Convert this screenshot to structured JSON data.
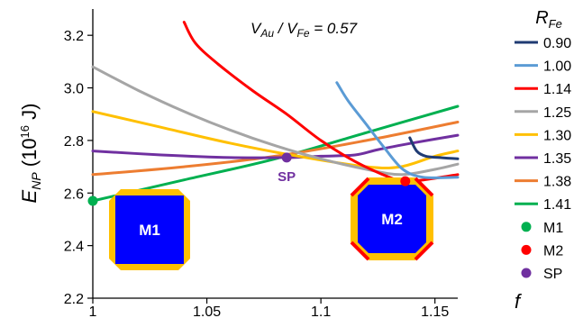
{
  "chart_data": {
    "type": "line",
    "annotation": {
      "main": "V",
      "sub1": "Au",
      "sep": " / V",
      "sub2": "Fe",
      "rest": " = 0.57"
    },
    "xlabel": "f",
    "ylabel": {
      "main": "E",
      "sub": "NP",
      "unit_open": " (10",
      "sup": "16",
      "unit_close": " J)"
    },
    "xlim": [
      1.0,
      1.16
    ],
    "ylim": [
      2.2,
      3.3
    ],
    "xticks": [
      1,
      1.05,
      1.1,
      1.15
    ],
    "xtick_labels": [
      "1",
      "1.05",
      "1.1",
      "1.15"
    ],
    "yticks": [
      2.2,
      2.4,
      2.6,
      2.8,
      3.0,
      3.2
    ],
    "ytick_labels": [
      "2.2",
      "2.4",
      "2.6",
      "2.8",
      "3.0",
      "3.2"
    ],
    "grid": false,
    "legend": {
      "title_main": "R",
      "title_sub": "Fe",
      "placement": "right"
    },
    "series": [
      {
        "name": "0.90",
        "color": "#1f3b73",
        "x": [
          1.139,
          1.142,
          1.146,
          1.152,
          1.16
        ],
        "y": [
          2.81,
          2.76,
          2.74,
          2.735,
          2.73
        ]
      },
      {
        "name": "1.00",
        "color": "#5b9bd5",
        "x": [
          1.107,
          1.112,
          1.12,
          1.128,
          1.136,
          1.145,
          1.16
        ],
        "y": [
          3.02,
          2.95,
          2.86,
          2.77,
          2.69,
          2.66,
          2.66
        ]
      },
      {
        "name": "1.14",
        "color": "#ff0000",
        "x": [
          1.04,
          1.045,
          1.055,
          1.07,
          1.085,
          1.1,
          1.115,
          1.13,
          1.137,
          1.145,
          1.16
        ],
        "y": [
          3.25,
          3.17,
          3.09,
          2.99,
          2.9,
          2.8,
          2.72,
          2.66,
          2.645,
          2.65,
          2.67
        ]
      },
      {
        "name": "1.25",
        "color": "#a5a5a5",
        "x": [
          1.0,
          1.02,
          1.04,
          1.06,
          1.08,
          1.1,
          1.12,
          1.135,
          1.15,
          1.16
        ],
        "y": [
          3.08,
          2.99,
          2.91,
          2.84,
          2.78,
          2.73,
          2.69,
          2.67,
          2.69,
          2.71
        ]
      },
      {
        "name": "1.30",
        "color": "#ffc000",
        "x": [
          1.0,
          1.03,
          1.06,
          1.09,
          1.12,
          1.135,
          1.15,
          1.16
        ],
        "y": [
          2.91,
          2.85,
          2.79,
          2.74,
          2.7,
          2.7,
          2.74,
          2.76
        ]
      },
      {
        "name": "1.35",
        "color": "#7030a0",
        "x": [
          1.0,
          1.03,
          1.06,
          1.085,
          1.1,
          1.115,
          1.125,
          1.14,
          1.16
        ],
        "y": [
          2.76,
          2.745,
          2.735,
          2.735,
          2.74,
          2.745,
          2.765,
          2.79,
          2.82
        ]
      },
      {
        "name": "1.38",
        "color": "#ed7d31",
        "x": [
          1.0,
          1.04,
          1.08,
          1.12,
          1.16
        ],
        "y": [
          2.67,
          2.7,
          2.74,
          2.8,
          2.87
        ]
      },
      {
        "name": "1.41",
        "color": "#00b050",
        "x": [
          1.0,
          1.04,
          1.08,
          1.12,
          1.16
        ],
        "y": [
          2.57,
          2.65,
          2.73,
          2.83,
          2.93
        ]
      }
    ],
    "points": [
      {
        "name": "M1",
        "color": "#00b050",
        "x": 1.0,
        "y": 2.57
      },
      {
        "name": "M2",
        "color": "#ff0000",
        "x": 1.137,
        "y": 2.645
      },
      {
        "name": "SP",
        "color": "#7030a0",
        "x": 1.085,
        "y": 2.735
      }
    ],
    "point_labels": [
      {
        "text": "SP",
        "color": "#7030a0"
      }
    ],
    "insets": [
      {
        "label": "M1",
        "fill": "#0000ff",
        "frame": "#ffc000"
      },
      {
        "label": "M2",
        "fill": "#0000ff",
        "frame": "#ffc000",
        "edge": "#ff0000"
      }
    ]
  }
}
